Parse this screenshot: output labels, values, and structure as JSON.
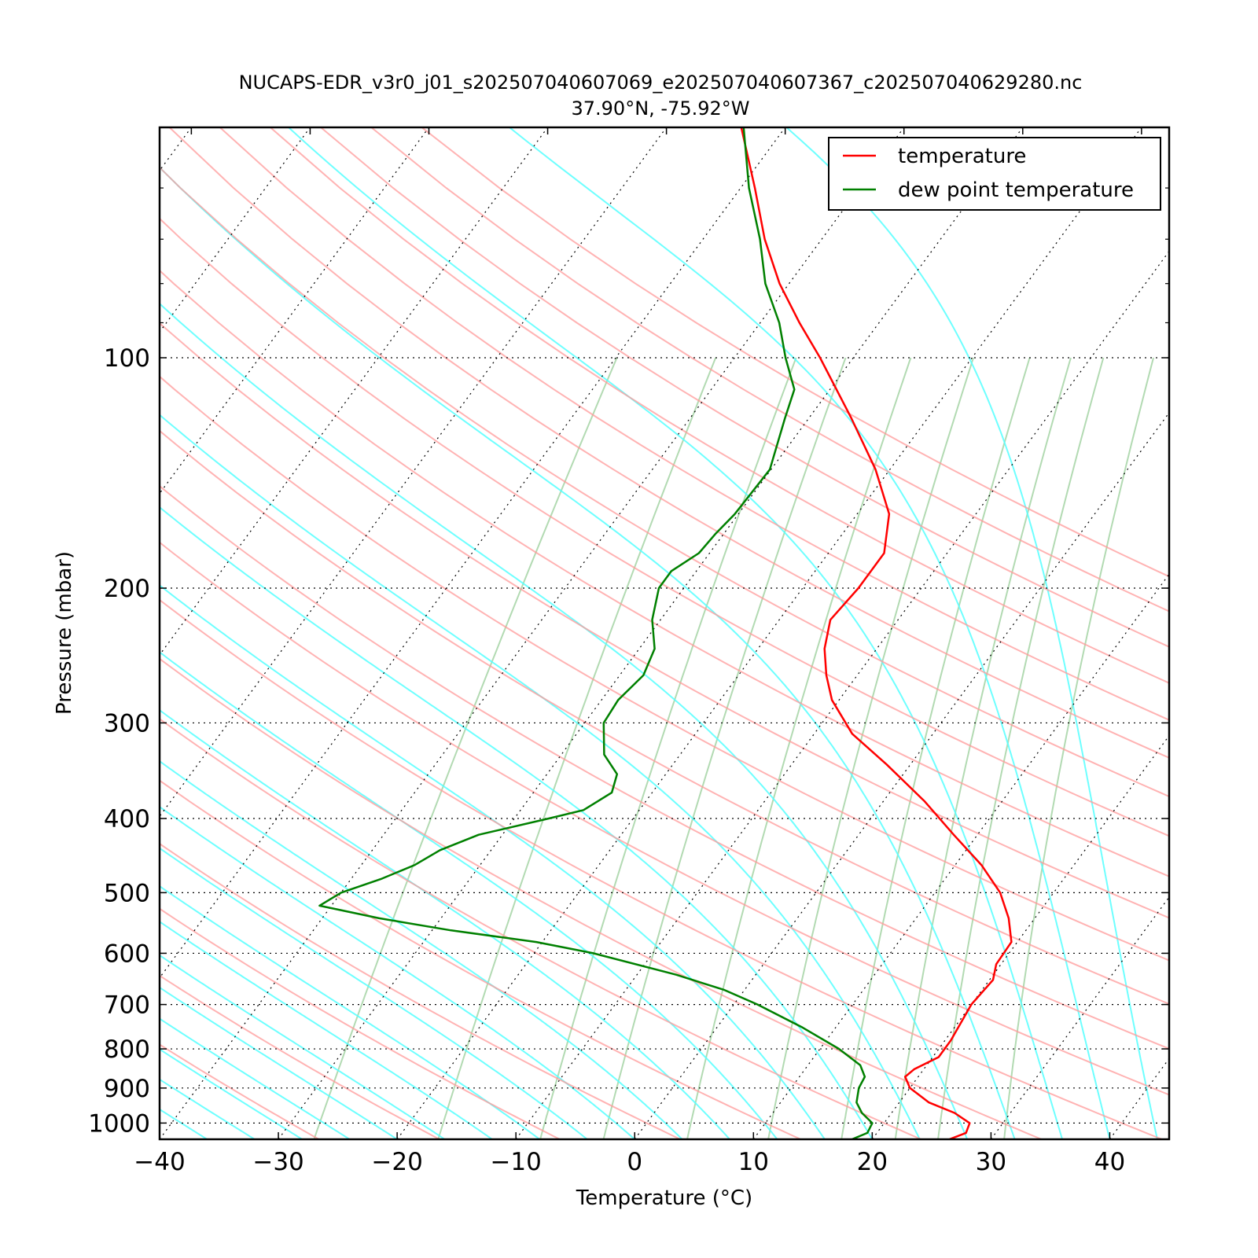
{
  "chart_data": {
    "type": "line",
    "title": "NUCAPS-EDR_v3r0_j01_s202507040607069_e202507040607367_c202507040629280.nc",
    "subtitle": "37.90°N, -75.92°W",
    "xlabel": "Temperature (°C)",
    "ylabel": "Pressure (mbar)",
    "xlim": [
      -40,
      45
    ],
    "ylim": [
      1050,
      50
    ],
    "y_scale": "log",
    "skew_deg_per_log10p": 47.4,
    "x_ticks": [
      "−40",
      "−30",
      "−20",
      "−10",
      "0",
      "10",
      "20",
      "30",
      "40"
    ],
    "y_ticks": [
      "100",
      "200",
      "300",
      "400",
      "500",
      "600",
      "700",
      "800",
      "900",
      "1000"
    ],
    "legend_position": "top-right",
    "series": [
      {
        "name": "temperature",
        "color": "#ff0000",
        "points": [
          {
            "p": 1050,
            "t": 26.5
          },
          {
            "p": 1030,
            "t": 27.5
          },
          {
            "p": 1000,
            "t": 27.2
          },
          {
            "p": 970,
            "t": 25.3
          },
          {
            "p": 940,
            "t": 22.5
          },
          {
            "p": 900,
            "t": 20.0
          },
          {
            "p": 870,
            "t": 18.9
          },
          {
            "p": 850,
            "t": 19.2
          },
          {
            "p": 820,
            "t": 20.5
          },
          {
            "p": 780,
            "t": 20.5
          },
          {
            "p": 700,
            "t": 20.0
          },
          {
            "p": 650,
            "t": 20.3
          },
          {
            "p": 620,
            "t": 19.6
          },
          {
            "p": 580,
            "t": 19.5
          },
          {
            "p": 540,
            "t": 17.8
          },
          {
            "p": 500,
            "t": 15.5
          },
          {
            "p": 460,
            "t": 12.2
          },
          {
            "p": 420,
            "t": 8.0
          },
          {
            "p": 380,
            "t": 3.5
          },
          {
            "p": 340,
            "t": -2.0
          },
          {
            "p": 310,
            "t": -6.8
          },
          {
            "p": 280,
            "t": -10.6
          },
          {
            "p": 260,
            "t": -12.6
          },
          {
            "p": 240,
            "t": -14.4
          },
          {
            "p": 220,
            "t": -15.7
          },
          {
            "p": 200,
            "t": -15.3
          },
          {
            "p": 180,
            "t": -15.3
          },
          {
            "p": 160,
            "t": -17.3
          },
          {
            "p": 140,
            "t": -21.2
          },
          {
            "p": 120,
            "t": -26.4
          },
          {
            "p": 100,
            "t": -32.8
          },
          {
            "p": 90,
            "t": -36.7
          },
          {
            "p": 80,
            "t": -40.8
          },
          {
            "p": 70,
            "t": -44.8
          },
          {
            "p": 60,
            "t": -48.8
          },
          {
            "p": 50,
            "t": -53.7
          }
        ]
      },
      {
        "name": "dew point temperature",
        "color": "#008000",
        "points": [
          {
            "p": 1050,
            "t": 18.3
          },
          {
            "p": 1030,
            "t": 19.2
          },
          {
            "p": 1000,
            "t": 19.0
          },
          {
            "p": 970,
            "t": 17.5
          },
          {
            "p": 940,
            "t": 16.4
          },
          {
            "p": 900,
            "t": 15.7
          },
          {
            "p": 870,
            "t": 15.5
          },
          {
            "p": 840,
            "t": 14.4
          },
          {
            "p": 800,
            "t": 11.6
          },
          {
            "p": 750,
            "t": 7.2
          },
          {
            "p": 700,
            "t": 2.0
          },
          {
            "p": 670,
            "t": -1.7
          },
          {
            "p": 640,
            "t": -6.7
          },
          {
            "p": 600,
            "t": -15.0
          },
          {
            "p": 580,
            "t": -20.5
          },
          {
            "p": 560,
            "t": -28.4
          },
          {
            "p": 540,
            "t": -35.2
          },
          {
            "p": 520,
            "t": -41.0
          },
          {
            "p": 500,
            "t": -40.0
          },
          {
            "p": 480,
            "t": -37.5
          },
          {
            "p": 460,
            "t": -35.5
          },
          {
            "p": 440,
            "t": -34.3
          },
          {
            "p": 420,
            "t": -32.0
          },
          {
            "p": 400,
            "t": -27.1
          },
          {
            "p": 390,
            "t": -24.7
          },
          {
            "p": 370,
            "t": -23.4
          },
          {
            "p": 350,
            "t": -24.1
          },
          {
            "p": 330,
            "t": -26.4
          },
          {
            "p": 300,
            "t": -28.4
          },
          {
            "p": 280,
            "t": -28.6
          },
          {
            "p": 260,
            "t": -28.0
          },
          {
            "p": 240,
            "t": -28.7
          },
          {
            "p": 220,
            "t": -30.7
          },
          {
            "p": 200,
            "t": -32.1
          },
          {
            "p": 190,
            "t": -32.1
          },
          {
            "p": 180,
            "t": -30.9
          },
          {
            "p": 170,
            "t": -30.7
          },
          {
            "p": 160,
            "t": -30.3
          },
          {
            "p": 140,
            "t": -30.1
          },
          {
            "p": 120,
            "t": -32.0
          },
          {
            "p": 110,
            "t": -33.0
          },
          {
            "p": 100,
            "t": -35.7
          },
          {
            "p": 90,
            "t": -38.4
          },
          {
            "p": 80,
            "t": -42.0
          },
          {
            "p": 70,
            "t": -45.2
          },
          {
            "p": 60,
            "t": -49.3
          },
          {
            "p": 50,
            "t": -53.5
          }
        ]
      }
    ]
  }
}
